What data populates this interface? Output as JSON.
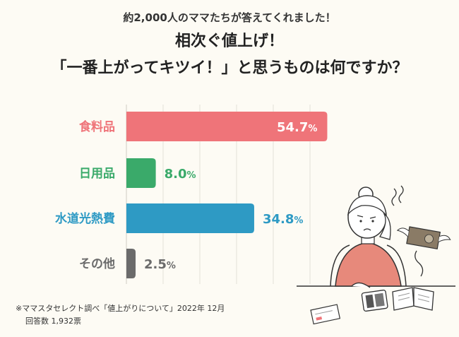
{
  "header": {
    "subtitle": "約2,000人のママたちが答えてくれました！",
    "title_line1": "相次ぐ値上げ！",
    "title_line2": "「一番上がってキツイ！」と思うものは何ですか？"
  },
  "chart_data": {
    "type": "bar",
    "orientation": "horizontal",
    "categories": [
      "食料品",
      "日用品",
      "水道光熱費",
      "その他"
    ],
    "values": [
      54.7,
      8.0,
      34.8,
      2.5
    ],
    "colors": [
      "#ef7479",
      "#3aaa6a",
      "#2e9ac4",
      "#6b6b6b"
    ],
    "unit": "%",
    "xlim": [
      0,
      100
    ],
    "grid": true,
    "title": "",
    "xlabel": "",
    "ylabel": ""
  },
  "footer": {
    "source": "※ママスタセレクト調べ「値上がりについて」2022年 12月",
    "respondents": "回答数 1,932票"
  }
}
